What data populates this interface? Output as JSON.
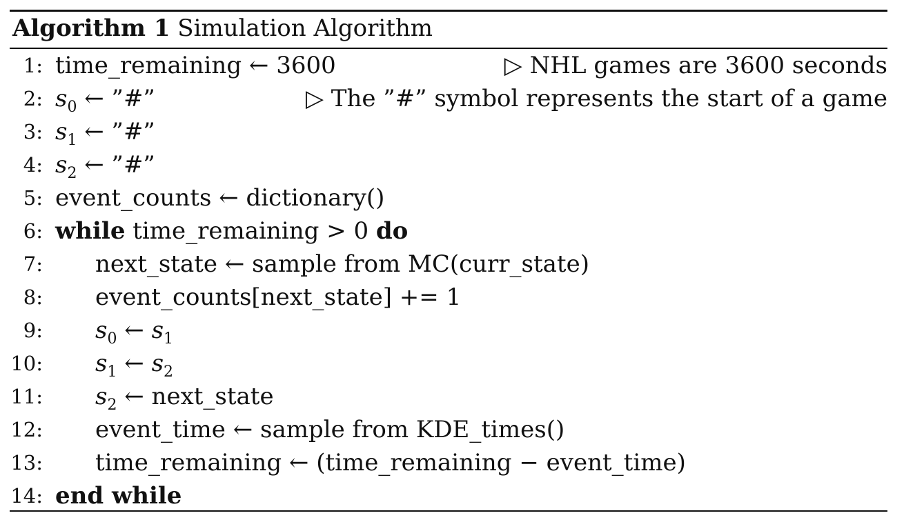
{
  "caption": {
    "label": "Algorithm 1",
    "title": "Simulation Algorithm"
  },
  "lines": [
    {
      "n": "1:",
      "text": "time_remaining ← 3600",
      "comment": "▷ NHL games are 3600 seconds"
    },
    {
      "n": "2:",
      "var": "s",
      "sub": "0",
      "rest": " ← ”#”",
      "comment": "▷ The ”#” symbol represents the start of a game"
    },
    {
      "n": "3:",
      "var": "s",
      "sub": "1",
      "rest": " ← ”#”"
    },
    {
      "n": "4:",
      "var": "s",
      "sub": "2",
      "rest": " ← ”#”"
    },
    {
      "n": "5:",
      "text": "event_counts ← dictionary()"
    },
    {
      "n": "6:",
      "kw1": "while",
      "mid": " time_remaining > 0 ",
      "kw2": "do"
    },
    {
      "n": "7:",
      "text": "next_state ← sample from MC(curr_state)"
    },
    {
      "n": "8:",
      "text": "event_counts[next_state] += 1"
    },
    {
      "n": "9:",
      "var": "s",
      "sub": "0",
      "arrow": " ← ",
      "var2": "s",
      "sub2": "1"
    },
    {
      "n": "10:",
      "var": "s",
      "sub": "1",
      "arrow": " ← ",
      "var2": "s",
      "sub2": "2"
    },
    {
      "n": "11:",
      "var": "s",
      "sub": "2",
      "rest": " ← next_state"
    },
    {
      "n": "12:",
      "text": "event_time ← sample from KDE_times()"
    },
    {
      "n": "13:",
      "text": "time_remaining ← (time_remaining − event_time)"
    },
    {
      "n": "14:",
      "kw1": "end while"
    }
  ]
}
